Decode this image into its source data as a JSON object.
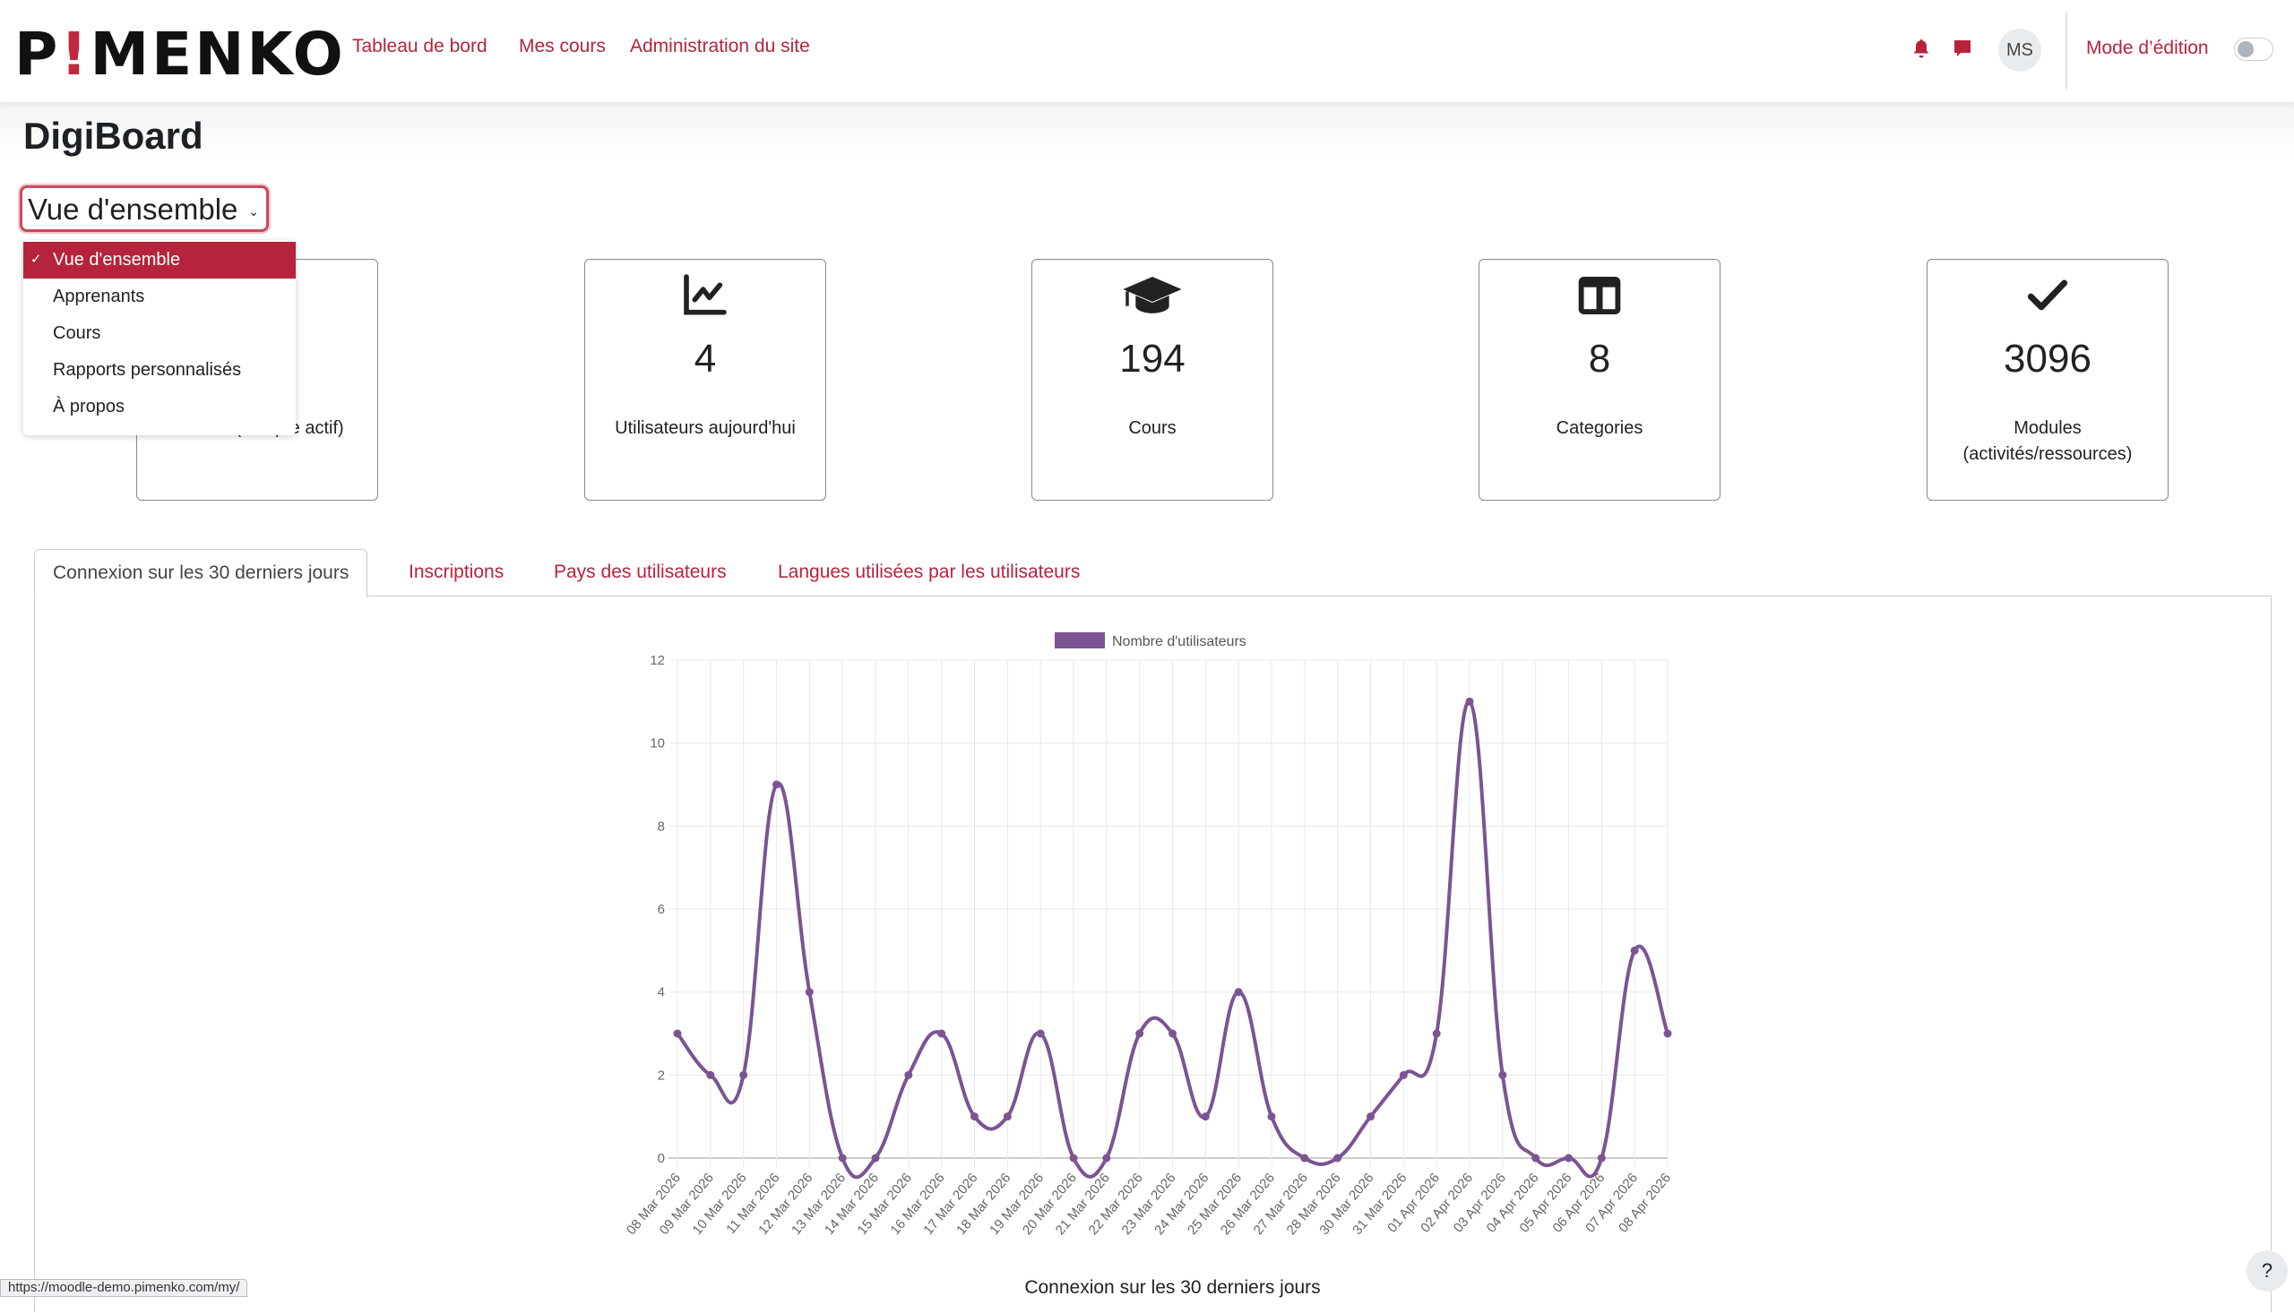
{
  "header": {
    "logo": "P!MENKO",
    "nav": [
      "Tableau de bord",
      "Mes cours",
      "Administration du site"
    ],
    "avatar": "MS",
    "edit_mode": "Mode d’édition",
    "edit_mode_on": false,
    "accent": "#b5243c"
  },
  "page": {
    "title": "DigiBoard"
  },
  "select": {
    "value": "Vue d'ensemble",
    "options": [
      "Vue d'ensemble",
      "Apprenants",
      "Cours",
      "Rapports personnalisés",
      "À propos"
    ]
  },
  "cards": [
    {
      "icon": "users-icon",
      "value": "",
      "label": "…rs (compte actif)"
    },
    {
      "icon": "chart-line-icon",
      "value": "4",
      "label": "Utilisateurs aujourd'hui"
    },
    {
      "icon": "graduation-cap-icon",
      "value": "194",
      "label": "Cours"
    },
    {
      "icon": "columns-icon",
      "value": "8",
      "label": "Categories"
    },
    {
      "icon": "check-icon",
      "value": "3096",
      "label": "Modules (activités/ressources)"
    }
  ],
  "tabs": [
    "Connexion sur les 30 derniers jours",
    "Inscriptions",
    "Pays des utilisateurs",
    "Langues utilisées par les utilisateurs"
  ],
  "chart_data": {
    "type": "line",
    "title": "Connexion sur les 30 derniers jours",
    "legend": "top",
    "grid": true,
    "ylim": [
      0,
      12
    ],
    "yticks": [
      0,
      2,
      4,
      6,
      8,
      10,
      12
    ],
    "color": "#7b5494",
    "categories": [
      "08 Mar 2026",
      "09 Mar 2026",
      "10 Mar 2026",
      "11 Mar 2026",
      "12 Mar 2026",
      "13 Mar 2026",
      "14 Mar 2026",
      "15 Mar 2026",
      "16 Mar 2026",
      "17 Mar 2026",
      "18 Mar 2026",
      "19 Mar 2026",
      "20 Mar 2026",
      "21 Mar 2026",
      "22 Mar 2026",
      "23 Mar 2026",
      "24 Mar 2026",
      "25 Mar 2026",
      "26 Mar 2026",
      "27 Mar 2026",
      "28 Mar 2026",
      "30 Mar 2026",
      "31 Mar 2026",
      "01 Apr 2026",
      "02 Apr 2026",
      "03 Apr 2026",
      "04 Apr 2026",
      "05 Apr 2026",
      "06 Apr 2026",
      "07 Apr 2026",
      "08 Apr 2026"
    ],
    "series": [
      {
        "name": "Nombre d'utilisateurs",
        "values": [
          3,
          2,
          2,
          9,
          4,
          0,
          0,
          2,
          3,
          1,
          1,
          3,
          0,
          0,
          3,
          3,
          1,
          4,
          1,
          0,
          0,
          1,
          2,
          3,
          11,
          2,
          0,
          0,
          0,
          5,
          3
        ]
      }
    ]
  },
  "status_url": "https://moodle-demo.pimenko.com/my/",
  "help": "?"
}
